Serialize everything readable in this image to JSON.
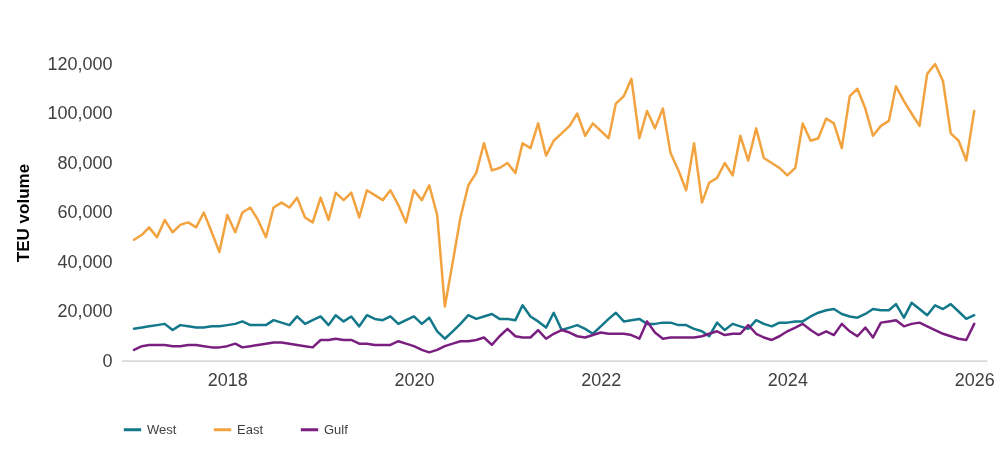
{
  "chart_data": {
    "type": "line",
    "ylabel": "TEU volume",
    "x": [
      "2017-01",
      "2017-02",
      "2017-03",
      "2017-04",
      "2017-05",
      "2017-06",
      "2017-07",
      "2017-08",
      "2017-09",
      "2017-10",
      "2017-11",
      "2017-12",
      "2018-01",
      "2018-02",
      "2018-03",
      "2018-04",
      "2018-05",
      "2018-06",
      "2018-07",
      "2018-08",
      "2018-09",
      "2018-10",
      "2018-11",
      "2018-12",
      "2019-01",
      "2019-02",
      "2019-03",
      "2019-04",
      "2019-05",
      "2019-06",
      "2019-07",
      "2019-08",
      "2019-09",
      "2019-10",
      "2019-11",
      "2019-12",
      "2020-01",
      "2020-02",
      "2020-03",
      "2020-04",
      "2020-05",
      "2020-06",
      "2020-07",
      "2020-08",
      "2020-09",
      "2020-10",
      "2020-11",
      "2020-12",
      "2021-01",
      "2021-02",
      "2021-03",
      "2021-04",
      "2021-05",
      "2021-06",
      "2021-07",
      "2021-08",
      "2021-09",
      "2021-10",
      "2021-11",
      "2021-12",
      "2022-01",
      "2022-02",
      "2022-03",
      "2022-04",
      "2022-05",
      "2022-06",
      "2022-07",
      "2022-08",
      "2022-09",
      "2022-10",
      "2022-11",
      "2022-12",
      "2023-01",
      "2023-02",
      "2023-03",
      "2023-04",
      "2023-05",
      "2023-06",
      "2023-07",
      "2023-08",
      "2023-09",
      "2023-10",
      "2023-11",
      "2023-12",
      "2024-01",
      "2024-02",
      "2024-03",
      "2024-04",
      "2024-05",
      "2024-06",
      "2024-07",
      "2024-08",
      "2024-09",
      "2024-10",
      "2024-11",
      "2024-12",
      "2025-01",
      "2025-02",
      "2025-03",
      "2025-04",
      "2025-05",
      "2025-06",
      "2025-07",
      "2025-08",
      "2025-09",
      "2025-10",
      "2025-11",
      "2025-12",
      "2026-01"
    ],
    "series": [
      {
        "name": "West",
        "color": "#12788a",
        "values": [
          13000,
          13500,
          14000,
          14500,
          15000,
          12500,
          14500,
          14000,
          13500,
          13500,
          14000,
          14000,
          14500,
          15000,
          16000,
          14500,
          14500,
          14500,
          16500,
          15500,
          14500,
          18000,
          15000,
          16500,
          18000,
          14500,
          18500,
          16000,
          18000,
          14000,
          18500,
          17000,
          16500,
          18000,
          15000,
          16500,
          18000,
          15000,
          17500,
          12000,
          9000,
          12000,
          15000,
          18500,
          17000,
          18000,
          19000,
          17000,
          17000,
          16500,
          22500,
          18000,
          16000,
          13500,
          19500,
          12500,
          13500,
          14500,
          13000,
          11000,
          14000,
          17000,
          19500,
          16000,
          16500,
          17000,
          15000,
          15000,
          15500,
          15500,
          14500,
          14500,
          13000,
          12000,
          10000,
          15500,
          12500,
          15000,
          14000,
          13000,
          16500,
          15000,
          14000,
          15500,
          15500,
          16000,
          16000,
          18000,
          19500,
          20500,
          21000,
          19000,
          18000,
          17500,
          19000,
          21000,
          20500,
          20500,
          23000,
          17500,
          23500,
          21000,
          18500,
          22500,
          21000,
          23000,
          20000,
          17000,
          18500
        ]
      },
      {
        "name": "East",
        "color": "#f2a33f",
        "values": [
          49000,
          51000,
          54000,
          50000,
          57000,
          52000,
          55000,
          56000,
          54000,
          60000,
          52000,
          44000,
          59000,
          52000,
          60000,
          62000,
          57000,
          50000,
          62000,
          64000,
          62000,
          66000,
          58000,
          56000,
          66000,
          57000,
          68000,
          65000,
          68000,
          58000,
          69000,
          67000,
          65000,
          69000,
          63000,
          56000,
          69000,
          65000,
          71000,
          59000,
          22000,
          40000,
          58000,
          71000,
          76000,
          88000,
          77000,
          78000,
          80000,
          76000,
          88000,
          86000,
          96000,
          83000,
          89000,
          92000,
          95000,
          100000,
          91000,
          96000,
          93000,
          90000,
          104000,
          107000,
          114000,
          90000,
          101000,
          94000,
          102000,
          84000,
          77000,
          69000,
          88000,
          64000,
          72000,
          74000,
          80000,
          75000,
          91000,
          81000,
          94000,
          82000,
          80000,
          78000,
          75000,
          78000,
          96000,
          89000,
          90000,
          98000,
          96000,
          86000,
          107000,
          110000,
          102000,
          91000,
          95000,
          97000,
          111000,
          105000,
          100000,
          95000,
          116000,
          120000,
          113000,
          92000,
          89000,
          81000,
          101000
        ]
      },
      {
        "name": "Gulf",
        "color": "#7a1f80",
        "values": [
          4500,
          6000,
          6500,
          6500,
          6500,
          6000,
          6000,
          6500,
          6500,
          6000,
          5500,
          5500,
          6000,
          7000,
          5500,
          6000,
          6500,
          7000,
          7500,
          7500,
          7000,
          6500,
          6000,
          5500,
          8500,
          8500,
          9000,
          8500,
          8500,
          7000,
          7000,
          6500,
          6500,
          6500,
          8000,
          7000,
          6000,
          4500,
          3500,
          4500,
          6000,
          7000,
          8000,
          8000,
          8500,
          9500,
          6500,
          10000,
          13000,
          10000,
          9500,
          9500,
          12500,
          9000,
          11000,
          12500,
          11500,
          10000,
          9500,
          10500,
          11500,
          11000,
          11000,
          11000,
          10500,
          9000,
          16000,
          11500,
          9000,
          9500,
          9500,
          9500,
          9500,
          10000,
          11000,
          12000,
          10500,
          11000,
          11000,
          14500,
          11000,
          9500,
          8500,
          10000,
          12000,
          13500,
          15000,
          12500,
          10500,
          12000,
          10500,
          15000,
          12000,
          10000,
          13500,
          9500,
          15500,
          16000,
          16500,
          14000,
          15000,
          15500,
          14000,
          12500,
          11000,
          10000,
          9000,
          8500,
          15000
        ]
      }
    ],
    "xlim": [
      "2016-11-15",
      "2026-02-20"
    ],
    "xticks": [
      "2018",
      "2020",
      "2022",
      "2024",
      "2026"
    ],
    "ylim": [
      0,
      120000
    ],
    "yticks": [
      0,
      {
        "value": 20000,
        "label": "20,000"
      },
      {
        "value": 40000,
        "label": "40,000"
      },
      {
        "value": 60000,
        "label": "60,000"
      },
      {
        "value": 80000,
        "label": "80,000"
      },
      {
        "value": 100000,
        "label": "100,000"
      },
      {
        "value": 120000,
        "label": "120,000"
      }
    ],
    "legend": "bottom",
    "line_style": "solid"
  }
}
